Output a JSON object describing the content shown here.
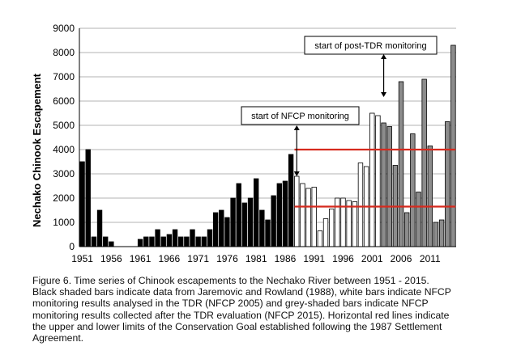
{
  "chart_data": {
    "type": "bar",
    "title": "",
    "xlabel": "",
    "ylabel": "Nechako Chinook Escapement",
    "ylim": [
      0,
      9000
    ],
    "y_ticks": [
      0,
      1000,
      2000,
      3000,
      4000,
      5000,
      6000,
      7000,
      8000,
      9000
    ],
    "y_tick_labels": [
      "0",
      "1000",
      "2000",
      "3000",
      "4000",
      "5000",
      "6000",
      "7000",
      "8000",
      "9000"
    ],
    "x_tick_years": [
      1951,
      1956,
      1961,
      1966,
      1971,
      1976,
      1981,
      1986,
      1991,
      1996,
      2001,
      2006,
      2011
    ],
    "x_tick_labels": [
      "1951",
      "1956",
      "1961",
      "1966",
      "1971",
      "1976",
      "1981",
      "1986",
      "1991",
      "1996",
      "2001",
      "2006",
      "2011"
    ],
    "grid": true,
    "categories": [
      1951,
      1952,
      1953,
      1954,
      1955,
      1956,
      1957,
      1958,
      1959,
      1960,
      1961,
      1962,
      1963,
      1964,
      1965,
      1966,
      1967,
      1968,
      1969,
      1970,
      1971,
      1972,
      1973,
      1974,
      1975,
      1976,
      1977,
      1978,
      1979,
      1980,
      1981,
      1982,
      1983,
      1984,
      1985,
      1986,
      1987,
      1988,
      1989,
      1990,
      1991,
      1992,
      1993,
      1994,
      1995,
      1996,
      1997,
      1998,
      1999,
      2000,
      2001,
      2002,
      2003,
      2004,
      2005,
      2006,
      2007,
      2008,
      2009,
      2010,
      2011,
      2012,
      2013,
      2014,
      2015
    ],
    "series": [
      {
        "group": "black",
        "color": "#000000",
        "x": [
          1951,
          1952,
          1953,
          1954,
          1955,
          1956,
          1957,
          1958,
          1959,
          1960,
          1961,
          1962,
          1963,
          1964,
          1965,
          1966,
          1967,
          1968,
          1969,
          1970,
          1971,
          1972,
          1973,
          1974,
          1975,
          1976,
          1977,
          1978,
          1979,
          1980,
          1981,
          1982,
          1983,
          1984,
          1985,
          1986,
          1987
        ],
        "values": [
          3500,
          4000,
          400,
          1500,
          400,
          200,
          0,
          0,
          0,
          0,
          300,
          400,
          400,
          700,
          400,
          500,
          700,
          400,
          400,
          700,
          400,
          400,
          700,
          1400,
          1500,
          1200,
          2000,
          2600,
          1800,
          2000,
          2800,
          1500,
          1100,
          2100,
          2600,
          2700,
          3800
        ]
      },
      {
        "group": "white",
        "color": "#ffffff",
        "x": [
          1988,
          1989,
          1990,
          1991,
          1992,
          1993,
          1994,
          1995,
          1996,
          1997,
          1998,
          1999,
          2000,
          2001,
          2002
        ],
        "values": [
          2900,
          2600,
          2400,
          2450,
          650,
          1150,
          1550,
          2000,
          2000,
          1900,
          1850,
          3450,
          3300,
          5500,
          5400
        ]
      },
      {
        "group": "grey",
        "color": "#8c8c8c",
        "x": [
          2003,
          2004,
          2005,
          2006,
          2007,
          2008,
          2009,
          2010,
          2011,
          2012,
          2013,
          2014,
          2015
        ],
        "values": [
          5100,
          4950,
          3350,
          6800,
          1400,
          4650,
          2250,
          6900,
          4150,
          1000,
          1100,
          5150,
          8300
        ]
      }
    ],
    "reference_lines": [
      {
        "label": "upper limit",
        "y": 4000,
        "x_start": 1988,
        "x_end": 2015,
        "color": "#d62a1e"
      },
      {
        "label": "lower limit",
        "y": 1650,
        "x_start": 1988,
        "x_end": 2015,
        "color": "#d62a1e"
      }
    ],
    "annotations": [
      {
        "text": "start of NFCP monitoring",
        "arrow_x": 1988
      },
      {
        "text": "start of post-TDR  monitoring",
        "arrow_x": 2003
      }
    ]
  },
  "caption": {
    "lines": [
      "Figure 6. Time series of Chinook escapements to the Nechako River between 1951 - 2015.",
      "Black shaded bars indicate data from Jaremovic and Rowland (1988), white bars indicate NFCP",
      "monitoring results analysed in the TDR (NFCP 2005) and grey-shaded bars indicate NFCP",
      "monitoring results collected after the TDR evaluation (NFCP 2015). Horizontal red lines indicate",
      "the upper and lower limits of the Conservation Goal established following the 1987 Settlement",
      "Agreement."
    ]
  }
}
